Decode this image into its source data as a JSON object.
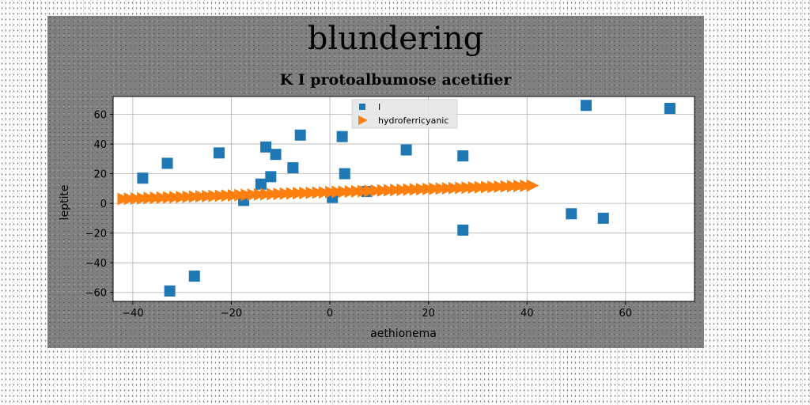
{
  "chart_data": {
    "type": "scatter",
    "suptitle": "blundering",
    "title": "K I protoalbumose acetifier",
    "xlabel": "aethionema",
    "ylabel": "leptite",
    "xlim": [
      -44,
      74
    ],
    "ylim": [
      -66,
      72
    ],
    "xticks": [
      -40,
      -20,
      0,
      20,
      40,
      60
    ],
    "yticks": [
      -60,
      -40,
      -20,
      0,
      20,
      40,
      60
    ],
    "grid": true,
    "legend_position": "upper center",
    "series": [
      {
        "name": "I",
        "marker": "square",
        "color": "#1f77b4",
        "points": [
          [
            -38,
            17
          ],
          [
            -33,
            27
          ],
          [
            -32.5,
            -59
          ],
          [
            -27.5,
            -49
          ],
          [
            -22.5,
            34
          ],
          [
            -17.5,
            2
          ],
          [
            -14,
            13
          ],
          [
            -13,
            38
          ],
          [
            -12,
            18
          ],
          [
            -11,
            33
          ],
          [
            -7.5,
            24
          ],
          [
            -6,
            46
          ],
          [
            0.5,
            4
          ],
          [
            2.5,
            45
          ],
          [
            3,
            20
          ],
          [
            7.5,
            8
          ],
          [
            15.5,
            36
          ],
          [
            27,
            32
          ],
          [
            27,
            -18
          ],
          [
            49,
            -7
          ],
          [
            52,
            66
          ],
          [
            55.5,
            -10
          ],
          [
            69,
            64
          ]
        ]
      },
      {
        "name": "hydroferricyanic",
        "marker": "triangle-right",
        "color": "#ff7f0e",
        "x_start": -42,
        "x_end": 41,
        "y_start": 3,
        "y_end": 12,
        "count": 64
      }
    ]
  }
}
